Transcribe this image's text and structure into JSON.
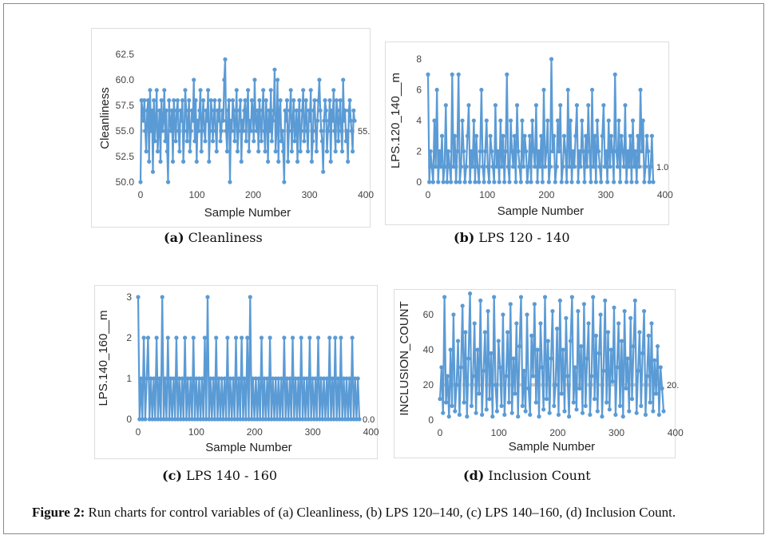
{
  "colors": {
    "series": "#5b9bd5",
    "center_line": "#c8c8c8"
  },
  "captions": [
    {
      "letter": "(a)",
      "text": "Cleanliness"
    },
    {
      "letter": "(b)",
      "text": "LPS 120 - 140"
    },
    {
      "letter": "(c)",
      "text": "LPS 140 - 160"
    },
    {
      "letter": "(d)",
      "text": "Inclusion Count"
    }
  ],
  "figure_caption": {
    "label": "Figure 2:",
    "text": "Run charts for control variables of (a) Cleanliness, (b) LPS 120–140, (c) LPS 140–160, (d)  Inclusion Count."
  },
  "chart_data": [
    {
      "type": "line",
      "id": "cleanliness",
      "xlabel": "Sample Number",
      "ylabel": "Cleanliness",
      "xlim": [
        0,
        380
      ],
      "ylim": [
        50,
        62.5
      ],
      "xticks": [
        "0",
        "100",
        "200",
        "300",
        "400"
      ],
      "yticks": [
        "50.0",
        "52.5",
        "55.0",
        "57.5",
        "60.0",
        "62.5"
      ],
      "center_value": 55,
      "center_label": "55.",
      "values": [
        50,
        58,
        57,
        56,
        58,
        55,
        53,
        57,
        58,
        52,
        59,
        55,
        57,
        51,
        58,
        54,
        56,
        59,
        53,
        55,
        57,
        52,
        58,
        55,
        56,
        59,
        54,
        57,
        53,
        50,
        58,
        56,
        55,
        57,
        52,
        58,
        56,
        54,
        57,
        58,
        55,
        53,
        57,
        56,
        58,
        52,
        55,
        59,
        57,
        54,
        56,
        58,
        53,
        55,
        57,
        56,
        60,
        54,
        58,
        52,
        56,
        55,
        57,
        59,
        53,
        56,
        58,
        55,
        54,
        57,
        56,
        59,
        52,
        55,
        58,
        57,
        54,
        56,
        58,
        55,
        53,
        57,
        56,
        58,
        54,
        55,
        57,
        56,
        60,
        62,
        55,
        53,
        57,
        58,
        50,
        56,
        55,
        58,
        57,
        54,
        56,
        59,
        53,
        55,
        57,
        58,
        52,
        56,
        55,
        57,
        58,
        54,
        57,
        59,
        53,
        56,
        55,
        58,
        57,
        54,
        60,
        56,
        55,
        57,
        53,
        58,
        56,
        54,
        57,
        59,
        55,
        53,
        58,
        56,
        52,
        57,
        55,
        59,
        54,
        56,
        57,
        61,
        53,
        55,
        60,
        52,
        57,
        58,
        54,
        55,
        53,
        50,
        57,
        56,
        58,
        52,
        55,
        57,
        59,
        53,
        56,
        58,
        54,
        55,
        57,
        52,
        56,
        58,
        53,
        55,
        57,
        59,
        54,
        56,
        58,
        55,
        53,
        57,
        56,
        59,
        52,
        54,
        57,
        58,
        55,
        53,
        56,
        58,
        60,
        57,
        55,
        54,
        51,
        56,
        58,
        57,
        53,
        55,
        56,
        58,
        52,
        57,
        56,
        59,
        55,
        53,
        58,
        57,
        54,
        56,
        58,
        55,
        53,
        60,
        56,
        57,
        54,
        55,
        52,
        57,
        58,
        56,
        55,
        53,
        57,
        56
      ],
      "scatter": [
        [
          4,
          57
        ],
        [
          8,
          58
        ],
        [
          12,
          54
        ],
        [
          16,
          56
        ]
      ]
    },
    {
      "type": "line",
      "id": "lps120",
      "xlabel": "Sample Number",
      "ylabel": "LPS.120_140__m",
      "xlim": [
        0,
        380
      ],
      "ylim": [
        0,
        8
      ],
      "xticks": [
        "0",
        "100",
        "200",
        "300",
        "400"
      ],
      "yticks": [
        "0",
        "2",
        "4",
        "6",
        "8"
      ],
      "center_value": 1,
      "center_label": "1.0",
      "values": [
        7,
        0,
        2,
        1,
        0,
        4,
        1,
        6,
        0,
        2,
        1,
        3,
        0,
        1,
        5,
        0,
        2,
        1,
        0,
        7,
        1,
        3,
        0,
        2,
        7,
        0,
        1,
        4,
        2,
        0,
        1,
        3,
        5,
        0,
        2,
        1,
        4,
        0,
        3,
        1,
        0,
        2,
        6,
        1,
        0,
        2,
        4,
        1,
        0,
        3,
        2,
        1,
        0,
        5,
        1,
        2,
        0,
        4,
        1,
        3,
        0,
        2,
        7,
        1,
        0,
        4,
        2,
        1,
        3,
        0,
        5,
        2,
        1,
        0,
        4,
        1,
        3,
        2,
        0,
        1,
        3,
        0,
        4,
        2,
        1,
        5,
        0,
        2,
        1,
        3,
        0,
        6,
        1,
        2,
        4,
        0,
        1,
        8,
        2,
        3,
        0,
        1,
        4,
        2,
        5,
        0,
        1,
        3,
        2,
        0,
        6,
        1,
        4,
        0,
        2,
        1,
        3,
        5,
        0,
        2,
        1,
        4,
        2,
        0,
        3,
        1,
        5,
        2,
        0,
        6,
        1,
        3,
        0,
        4,
        2,
        1,
        0,
        3,
        5,
        1,
        2,
        0,
        4,
        1,
        3,
        2,
        0,
        7,
        2,
        1,
        4,
        0,
        3,
        2,
        1,
        5,
        0,
        2,
        1,
        3,
        0,
        4,
        1,
        2,
        0,
        3,
        1,
        6,
        2,
        4,
        0,
        1,
        3,
        2,
        0,
        1,
        3,
        0
      ],
      "scatter": []
    },
    {
      "type": "line",
      "id": "lps140",
      "xlabel": "Sample Number",
      "ylabel": "LPS.140_160__m",
      "xlim": [
        0,
        380
      ],
      "ylim": [
        0,
        3
      ],
      "xticks": [
        "0",
        "100",
        "200",
        "300",
        "400"
      ],
      "yticks": [
        "0",
        "1",
        "2",
        "3"
      ],
      "center_value": 0,
      "center_label": "0.0",
      "values": [
        3,
        0,
        1,
        0,
        2,
        0,
        1,
        2,
        0,
        1,
        0,
        1,
        0,
        2,
        0,
        1,
        0,
        3,
        0,
        1,
        0,
        2,
        0,
        1,
        0,
        1,
        0,
        2,
        0,
        1,
        0,
        1,
        0,
        2,
        0,
        1,
        0,
        1,
        0,
        2,
        0,
        1,
        0,
        1,
        0,
        1,
        0,
        2,
        0,
        3,
        0,
        1,
        0,
        1,
        0,
        2,
        0,
        1,
        0,
        1,
        0,
        1,
        0,
        2,
        0,
        1,
        0,
        1,
        0,
        2,
        0,
        1,
        0,
        2,
        0,
        1,
        0,
        2,
        0,
        3,
        0,
        1,
        0,
        1,
        0,
        1,
        0,
        2,
        0,
        1,
        0,
        1,
        0,
        2,
        0,
        1,
        0,
        1,
        0,
        1,
        0,
        1,
        0,
        2,
        0,
        1,
        0,
        1,
        0,
        2,
        0,
        1,
        0,
        1,
        0,
        2,
        0,
        1,
        0,
        1,
        0,
        2,
        0,
        1,
        0,
        1,
        0,
        2,
        0,
        1,
        0,
        1,
        0,
        1,
        0,
        2,
        0,
        1,
        0,
        2,
        0,
        1,
        0,
        2,
        0,
        1,
        0,
        1,
        0,
        1,
        0,
        2,
        0,
        1,
        0,
        1,
        0
      ],
      "scatter": []
    },
    {
      "type": "line",
      "id": "inclusion",
      "xlabel": "Sample Number",
      "ylabel": "INCLUSION_COUNT",
      "xlim": [
        0,
        380
      ],
      "ylim": [
        0,
        70
      ],
      "xticks": [
        "0",
        "100",
        "200",
        "300",
        "400"
      ],
      "yticks": [
        "0",
        "20",
        "40",
        "60"
      ],
      "center_value": 20,
      "center_label": "20.",
      "values": [
        12,
        30,
        4,
        70,
        10,
        25,
        2,
        40,
        8,
        60,
        5,
        20,
        45,
        3,
        30,
        65,
        10,
        50,
        2,
        35,
        72,
        8,
        25,
        55,
        4,
        40,
        15,
        68,
        3,
        28,
        50,
        6,
        62,
        12,
        38,
        2,
        70,
        20,
        5,
        45,
        30,
        8,
        60,
        3,
        25,
        50,
        10,
        66,
        4,
        35,
        15,
        55,
        2,
        42,
        70,
        8,
        28,
        5,
        60,
        18,
        3,
        48,
        25,
        66,
        10,
        40,
        2,
        55,
        30,
        6,
        70,
        12,
        45,
        4,
        35,
        62,
        8,
        20,
        52,
        3,
        68,
        15,
        40,
        5,
        58,
        25,
        2,
        45,
        70,
        10,
        30,
        6,
        62,
        18,
        42,
        4,
        66,
        8,
        35,
        55,
        3,
        25,
        70,
        12,
        48,
        5,
        38,
        60,
        2,
        28,
        68,
        10,
        50,
        6,
        40,
        22,
        64,
        3,
        30,
        55,
        8,
        45,
        2,
        62,
        18,
        35,
        5,
        58,
        12,
        42,
        68,
        4,
        28,
        50,
        8,
        38,
        62,
        3,
        25,
        48,
        10,
        55,
        5,
        34,
        15,
        42,
        3,
        30,
        18,
        5
      ],
      "scatter": []
    }
  ]
}
